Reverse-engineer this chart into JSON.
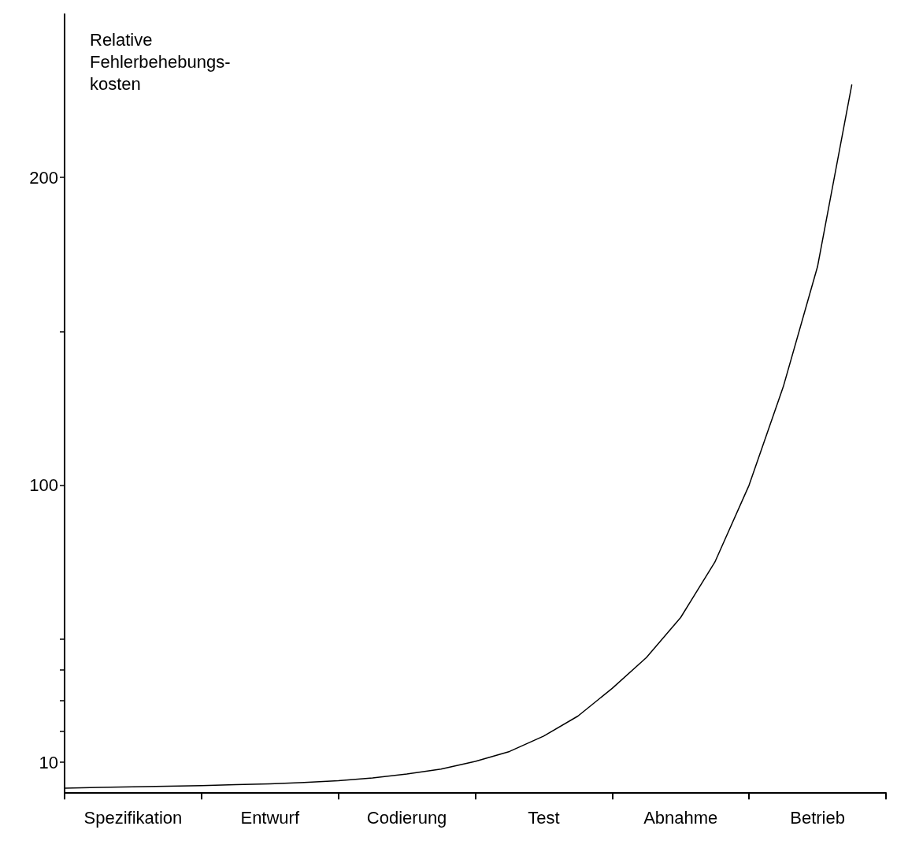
{
  "chart_data": {
    "type": "line",
    "ylabel": "Relative\nFehlerbehebungs-\nkosten",
    "categories": [
      null,
      null,
      "Spezifikation",
      null,
      null,
      null,
      "Entwurf",
      null,
      null,
      null,
      "Codierung",
      null,
      null,
      null,
      "Test",
      null,
      null,
      null,
      "Abnahme",
      null,
      null,
      null,
      "Betrieb",
      null,
      null
    ],
    "ylim": [
      -1.5,
      253
    ],
    "yticks": [
      {
        "value": 10,
        "label": "10"
      },
      {
        "value": 20,
        "label": null
      },
      {
        "value": 30,
        "label": null
      },
      {
        "value": 40,
        "label": null
      },
      {
        "value": 50,
        "label": null
      },
      {
        "value": 100,
        "label": "100"
      },
      {
        "value": 150,
        "label": null
      },
      {
        "value": 200,
        "label": "200"
      }
    ],
    "series": [
      {
        "color": "#000000",
        "values": [
          1.6,
          1.8,
          2.0,
          2.2,
          2.4,
          2.7,
          3.0,
          3.4,
          4.0,
          4.9,
          6.2,
          7.8,
          10.3,
          13.5,
          18.5,
          25,
          34,
          44,
          57,
          75,
          100,
          132,
          171,
          230,
          null
        ]
      }
    ],
    "grid": false,
    "marker": "none",
    "line_style": "solid"
  }
}
